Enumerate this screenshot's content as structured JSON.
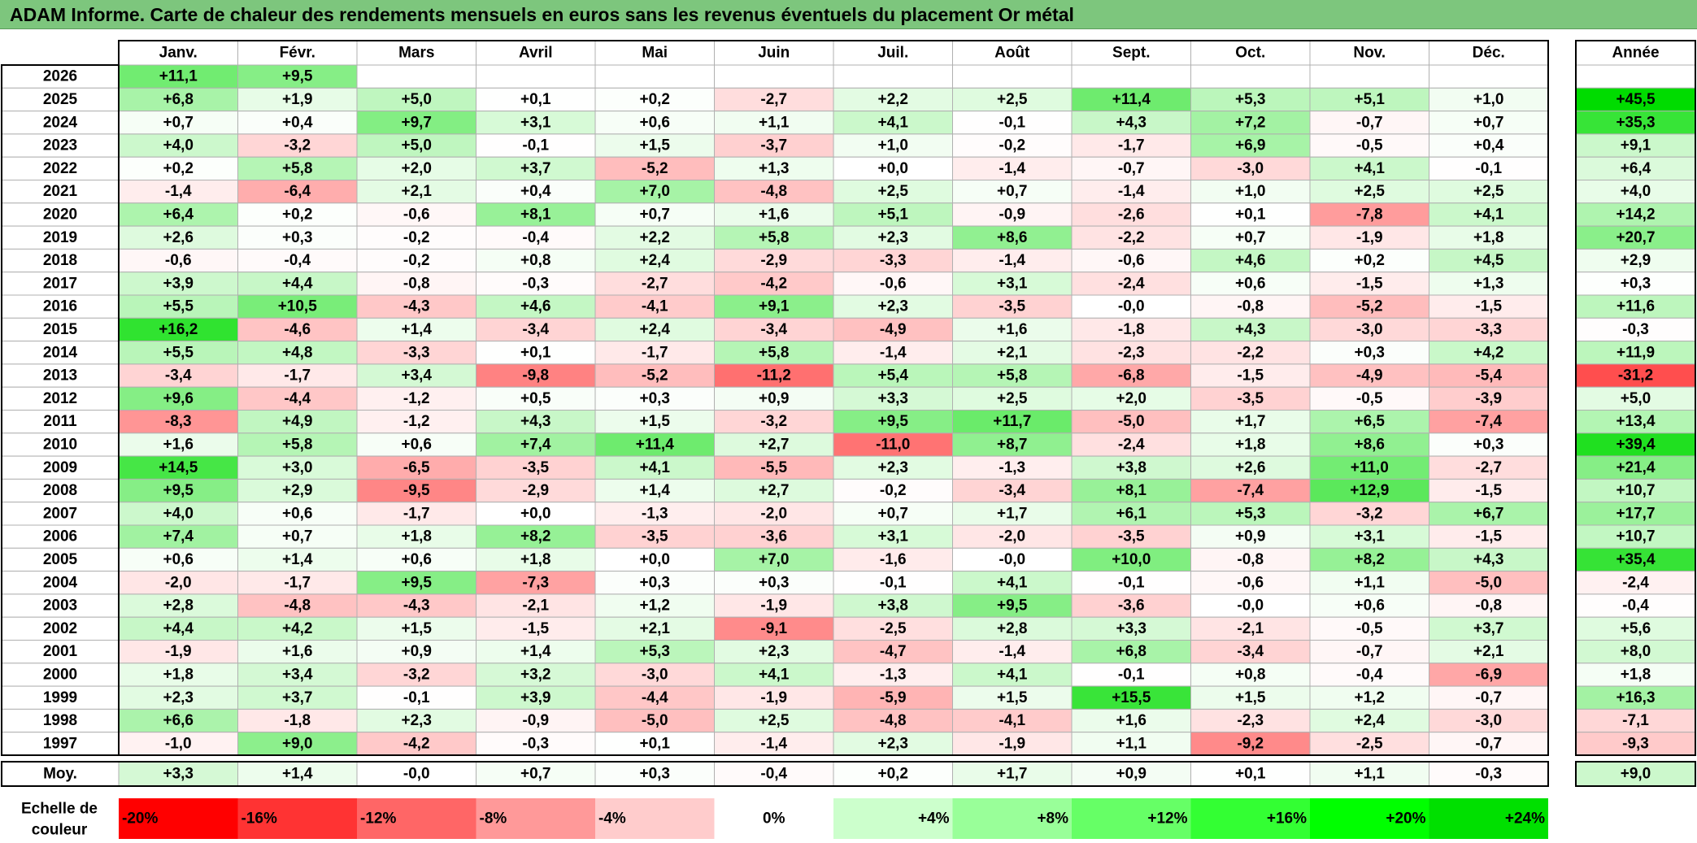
{
  "title": "ADAM Informe. Carte de chaleur des rendements mensuels en euros sans les revenus éventuels du placement Or métal",
  "chart_data": {
    "type": "heatmap",
    "title": "ADAM Informe. Carte de chaleur des rendements mensuels en euros sans les revenus éventuels du placement Or métal",
    "columns": [
      "Janv.",
      "Févr.",
      "Mars",
      "Avril",
      "Mai",
      "Juin",
      "Juil.",
      "Août",
      "Sept.",
      "Oct.",
      "Nov.",
      "Déc."
    ],
    "year_column_label": "Année",
    "rows": [
      {
        "year": "2026",
        "values": [
          "+11,1",
          "+9,5",
          "",
          "",
          "",
          "",
          "",
          "",
          "",
          "",
          "",
          ""
        ],
        "annual": ""
      },
      {
        "year": "2025",
        "values": [
          "+6,8",
          "+1,9",
          "+5,0",
          "+0,1",
          "+0,2",
          "-2,7",
          "+2,2",
          "+2,5",
          "+11,4",
          "+5,3",
          "+5,1",
          "+1,0"
        ],
        "annual": "+45,5"
      },
      {
        "year": "2024",
        "values": [
          "+0,7",
          "+0,4",
          "+9,7",
          "+3,1",
          "+0,6",
          "+1,1",
          "+4,1",
          "-0,1",
          "+4,3",
          "+7,2",
          "-0,7",
          "+0,7"
        ],
        "annual": "+35,3"
      },
      {
        "year": "2023",
        "values": [
          "+4,0",
          "-3,2",
          "+5,0",
          "-0,1",
          "+1,5",
          "-3,7",
          "+1,0",
          "-0,2",
          "-1,7",
          "+6,9",
          "-0,5",
          "+0,4"
        ],
        "annual": "+9,1"
      },
      {
        "year": "2022",
        "values": [
          "+0,2",
          "+5,8",
          "+2,0",
          "+3,7",
          "-5,2",
          "+1,3",
          "+0,0",
          "-1,4",
          "-0,7",
          "-3,0",
          "+4,1",
          "-0,1"
        ],
        "annual": "+6,4"
      },
      {
        "year": "2021",
        "values": [
          "-1,4",
          "-6,4",
          "+2,1",
          "+0,4",
          "+7,0",
          "-4,8",
          "+2,5",
          "+0,7",
          "-1,4",
          "+1,0",
          "+2,5",
          "+2,5"
        ],
        "annual": "+4,0"
      },
      {
        "year": "2020",
        "values": [
          "+6,4",
          "+0,2",
          "-0,6",
          "+8,1",
          "+0,7",
          "+1,6",
          "+5,1",
          "-0,9",
          "-2,6",
          "+0,1",
          "-7,8",
          "+4,1"
        ],
        "annual": "+14,2"
      },
      {
        "year": "2019",
        "values": [
          "+2,6",
          "+0,3",
          "-0,2",
          "-0,4",
          "+2,2",
          "+5,8",
          "+2,3",
          "+8,6",
          "-2,2",
          "+0,7",
          "-1,9",
          "+1,8"
        ],
        "annual": "+20,7"
      },
      {
        "year": "2018",
        "values": [
          "-0,6",
          "-0,4",
          "-0,2",
          "+0,8",
          "+2,4",
          "-2,9",
          "-3,3",
          "-1,4",
          "-0,6",
          "+4,6",
          "+0,2",
          "+4,5"
        ],
        "annual": "+2,9"
      },
      {
        "year": "2017",
        "values": [
          "+3,9",
          "+4,4",
          "-0,8",
          "-0,3",
          "-2,7",
          "-4,2",
          "-0,6",
          "+3,1",
          "-2,4",
          "+0,6",
          "-1,5",
          "+1,3"
        ],
        "annual": "+0,3"
      },
      {
        "year": "2016",
        "values": [
          "+5,5",
          "+10,5",
          "-4,3",
          "+4,6",
          "-4,1",
          "+9,1",
          "+2,3",
          "-3,5",
          "-0,0",
          "-0,8",
          "-5,2",
          "-1,5"
        ],
        "annual": "+11,6"
      },
      {
        "year": "2015",
        "values": [
          "+16,2",
          "-4,6",
          "+1,4",
          "-3,4",
          "+2,4",
          "-3,4",
          "-4,9",
          "+1,6",
          "-1,8",
          "+4,3",
          "-3,0",
          "-3,3"
        ],
        "annual": "-0,3"
      },
      {
        "year": "2014",
        "values": [
          "+5,5",
          "+4,8",
          "-3,3",
          "+0,1",
          "-1,7",
          "+5,8",
          "-1,4",
          "+2,1",
          "-2,3",
          "-2,2",
          "+0,3",
          "+4,2"
        ],
        "annual": "+11,9"
      },
      {
        "year": "2013",
        "values": [
          "-3,4",
          "-1,7",
          "+3,4",
          "-9,8",
          "-5,2",
          "-11,2",
          "+5,4",
          "+5,8",
          "-6,8",
          "-1,5",
          "-4,9",
          "-5,4"
        ],
        "annual": "-31,2"
      },
      {
        "year": "2012",
        "values": [
          "+9,6",
          "-4,4",
          "-1,2",
          "+0,5",
          "+0,3",
          "+0,9",
          "+3,3",
          "+2,5",
          "+2,0",
          "-3,5",
          "-0,5",
          "-3,9"
        ],
        "annual": "+5,0"
      },
      {
        "year": "2011",
        "values": [
          "-8,3",
          "+4,9",
          "-1,2",
          "+4,3",
          "+1,5",
          "-3,2",
          "+9,5",
          "+11,7",
          "-5,0",
          "+1,7",
          "+6,5",
          "-7,4"
        ],
        "annual": "+13,4"
      },
      {
        "year": "2010",
        "values": [
          "+1,6",
          "+5,8",
          "+0,6",
          "+7,4",
          "+11,4",
          "+2,7",
          "-11,0",
          "+8,7",
          "-2,4",
          "+1,8",
          "+8,6",
          "+0,3"
        ],
        "annual": "+39,4"
      },
      {
        "year": "2009",
        "values": [
          "+14,5",
          "+3,0",
          "-6,5",
          "-3,5",
          "+4,1",
          "-5,5",
          "+2,3",
          "-1,3",
          "+3,8",
          "+2,6",
          "+11,0",
          "-2,7"
        ],
        "annual": "+21,4"
      },
      {
        "year": "2008",
        "values": [
          "+9,5",
          "+2,9",
          "-9,5",
          "-2,9",
          "+1,4",
          "+2,7",
          "-0,2",
          "-3,4",
          "+8,1",
          "-7,4",
          "+12,9",
          "-1,5"
        ],
        "annual": "+10,7"
      },
      {
        "year": "2007",
        "values": [
          "+4,0",
          "+0,6",
          "-1,7",
          "+0,0",
          "-1,3",
          "-2,0",
          "+0,7",
          "+1,7",
          "+6,1",
          "+5,3",
          "-3,2",
          "+6,7"
        ],
        "annual": "+17,7"
      },
      {
        "year": "2006",
        "values": [
          "+7,4",
          "+0,7",
          "+1,8",
          "+8,2",
          "-3,5",
          "-3,6",
          "+3,1",
          "-2,0",
          "-3,5",
          "+0,9",
          "+3,1",
          "-1,5"
        ],
        "annual": "+10,7"
      },
      {
        "year": "2005",
        "values": [
          "+0,6",
          "+1,4",
          "+0,6",
          "+1,8",
          "+0,0",
          "+7,0",
          "-1,6",
          "-0,0",
          "+10,0",
          "-0,8",
          "+8,2",
          "+4,3"
        ],
        "annual": "+35,4"
      },
      {
        "year": "2004",
        "values": [
          "-2,0",
          "-1,7",
          "+9,5",
          "-7,3",
          "+0,3",
          "+0,3",
          "-0,1",
          "+4,1",
          "-0,1",
          "-0,6",
          "+1,1",
          "-5,0"
        ],
        "annual": "-2,4"
      },
      {
        "year": "2003",
        "values": [
          "+2,8",
          "-4,8",
          "-4,3",
          "-2,1",
          "+1,2",
          "-1,9",
          "+3,8",
          "+9,5",
          "-3,6",
          "-0,0",
          "+0,6",
          "-0,8"
        ],
        "annual": "-0,4"
      },
      {
        "year": "2002",
        "values": [
          "+4,4",
          "+4,2",
          "+1,5",
          "-1,5",
          "+2,1",
          "-9,1",
          "-2,5",
          "+2,8",
          "+3,3",
          "-2,1",
          "-0,5",
          "+3,7"
        ],
        "annual": "+5,6"
      },
      {
        "year": "2001",
        "values": [
          "-1,9",
          "+1,6",
          "+0,9",
          "+1,4",
          "+5,3",
          "+2,3",
          "-4,7",
          "-1,4",
          "+6,8",
          "-3,4",
          "-0,7",
          "+2,1"
        ],
        "annual": "+8,0"
      },
      {
        "year": "2000",
        "values": [
          "+1,8",
          "+3,4",
          "-3,2",
          "+3,2",
          "-3,0",
          "+4,1",
          "-1,3",
          "+4,1",
          "-0,1",
          "+0,8",
          "-0,4",
          "-6,9"
        ],
        "annual": "+1,8"
      },
      {
        "year": "1999",
        "values": [
          "+2,3",
          "+3,7",
          "-0,1",
          "+3,9",
          "-4,4",
          "-1,9",
          "-5,9",
          "+1,5",
          "+15,5",
          "+1,5",
          "+1,2",
          "-0,7"
        ],
        "annual": "+16,3"
      },
      {
        "year": "1998",
        "values": [
          "+6,6",
          "-1,8",
          "+2,3",
          "-0,9",
          "-5,0",
          "+2,5",
          "-4,8",
          "-4,1",
          "+1,6",
          "-2,3",
          "+2,4",
          "-3,0"
        ],
        "annual": "-7,1"
      },
      {
        "year": "1997",
        "values": [
          "-1,0",
          "+9,0",
          "-4,2",
          "-0,3",
          "+0,1",
          "-1,4",
          "+2,3",
          "-1,9",
          "+1,1",
          "-9,2",
          "-2,5",
          "-0,7"
        ],
        "annual": "-9,3"
      }
    ],
    "average": {
      "label": "Moy.",
      "values": [
        "+3,3",
        "+1,4",
        "-0,0",
        "+0,7",
        "+0,3",
        "-0,4",
        "+0,2",
        "+1,7",
        "+0,9",
        "+0,1",
        "+1,1",
        "-0,3"
      ],
      "annual": "+9,0"
    },
    "color_scale": {
      "label_line1": "Echelle de",
      "label_line2": "couleur",
      "stops": [
        {
          "label": "-20%",
          "color": "#ff0000"
        },
        {
          "label": "-16%",
          "color": "#ff3333"
        },
        {
          "label": "-12%",
          "color": "#ff6666"
        },
        {
          "label": "-8%",
          "color": "#ff9999"
        },
        {
          "label": "-4%",
          "color": "#ffcccc"
        },
        {
          "label": "0%",
          "color": "#ffffff"
        },
        {
          "label": "+4%",
          "color": "#ccffcc"
        },
        {
          "label": "+8%",
          "color": "#99ff99"
        },
        {
          "label": "+12%",
          "color": "#66ff66"
        },
        {
          "label": "+16%",
          "color": "#33ff33"
        },
        {
          "label": "+20%",
          "color": "#00ff00"
        },
        {
          "label": "+24%",
          "color": "#00e000"
        }
      ]
    },
    "colors": {
      "title_background": "#7dc67d",
      "negative_max": "#ff0000",
      "neutral": "#ffffff",
      "positive_max": "#00dc00"
    }
  }
}
